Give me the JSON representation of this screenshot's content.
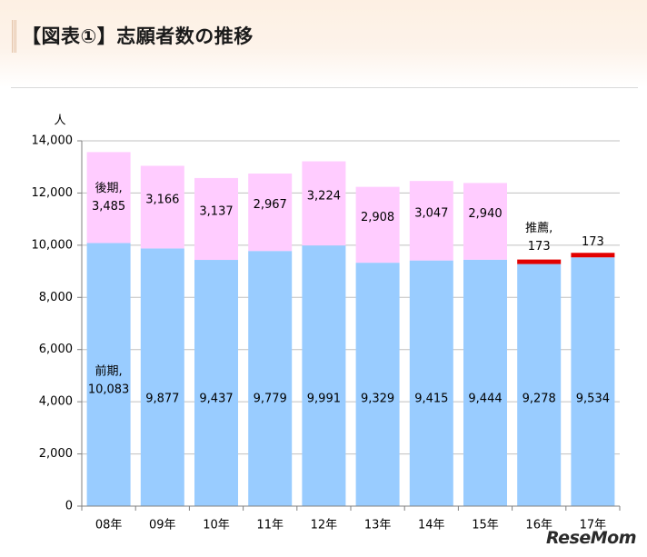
{
  "header": {
    "title": "【図表①】志願者数の推移"
  },
  "watermark": "ReseMom",
  "colors": {
    "zenki": "#99ccff",
    "kouki": "#ffccff",
    "suisen": "#e30000",
    "grid": "#c0c0c0",
    "axis": "#808080",
    "text": "#000000"
  },
  "chart_data": {
    "type": "bar",
    "stacked": true,
    "unit_label": "人",
    "categories": [
      "08年",
      "09年",
      "10年",
      "11年",
      "12年",
      "13年",
      "14年",
      "15年",
      "16年",
      "17年"
    ],
    "series": [
      {
        "name": "前期",
        "values": [
          10083,
          9877,
          9437,
          9779,
          9991,
          9329,
          9415,
          9444,
          9278,
          9534
        ],
        "data_labels": [
          "10,083",
          "9,877",
          "9,437",
          "9,779",
          "9,991",
          "9,329",
          "9,415",
          "9,444",
          "9,278",
          "9,534"
        ]
      },
      {
        "name": "推薦",
        "values": [
          null,
          null,
          null,
          null,
          null,
          null,
          null,
          null,
          173,
          173
        ],
        "data_labels": [
          "",
          "",
          "",
          "",
          "",
          "",
          "",
          "",
          "173",
          "173"
        ]
      },
      {
        "name": "後期",
        "values": [
          3485,
          3166,
          3137,
          2967,
          3224,
          2908,
          3047,
          2940,
          null,
          null
        ],
        "data_labels": [
          "3,485",
          "3,166",
          "3,137",
          "2,967",
          "3,224",
          "2,908",
          "3,047",
          "2,940",
          "",
          ""
        ]
      }
    ],
    "series_callouts": [
      {
        "series": "後期",
        "category": "08年",
        "text": "後期,"
      },
      {
        "series": "前期",
        "category": "08年",
        "text": "前期,"
      },
      {
        "series": "推薦",
        "category": "16年",
        "text": "推薦,"
      }
    ],
    "ylim": [
      0,
      14000
    ],
    "yticks": [
      0,
      2000,
      4000,
      6000,
      8000,
      10000,
      12000,
      14000
    ],
    "ytick_labels": [
      "0",
      "2,000",
      "4,000",
      "6,000",
      "8,000",
      "10,000",
      "12,000",
      "14,000"
    ],
    "grid": true,
    "legend": "none"
  }
}
